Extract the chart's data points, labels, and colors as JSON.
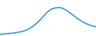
{
  "x": [
    0,
    1,
    2,
    3,
    4,
    5,
    6,
    7,
    8,
    9,
    10,
    11,
    12,
    13,
    14,
    15,
    16,
    17,
    18,
    19,
    20,
    21,
    22,
    23,
    24,
    25,
    26,
    27,
    28,
    29,
    30,
    31,
    32,
    33,
    34,
    35,
    36,
    37,
    38,
    39,
    40,
    41,
    42,
    43,
    44,
    45,
    46,
    47,
    48,
    49,
    50
  ],
  "y": [
    5,
    5,
    6,
    6,
    7,
    7,
    8,
    8,
    9,
    10,
    11,
    12,
    13,
    15,
    17,
    20,
    23,
    27,
    31,
    35,
    40,
    45,
    51,
    57,
    63,
    68,
    72,
    75,
    77,
    78,
    79,
    79,
    78,
    76,
    73,
    70,
    66,
    62,
    58,
    54,
    50,
    46,
    43,
    40,
    37,
    34,
    32,
    30,
    28,
    27,
    26
  ],
  "line_color": "#3a9fd4",
  "linewidth": 1.2,
  "bg_color": "#ffffff"
}
